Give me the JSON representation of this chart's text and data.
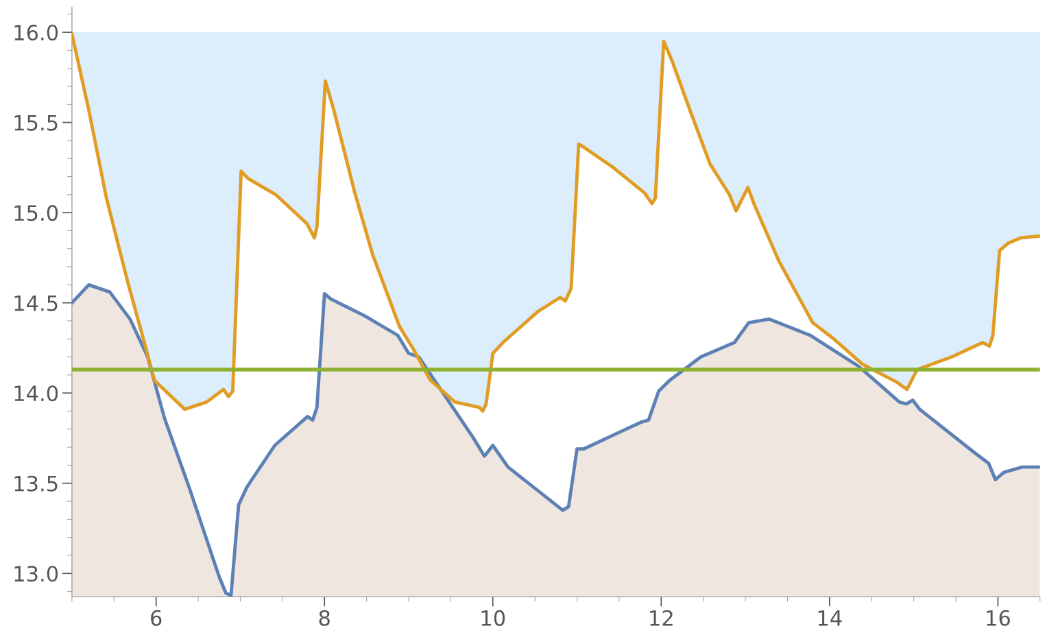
{
  "chart_data": {
    "type": "line",
    "xlim": [
      5,
      16.5
    ],
    "ylim": [
      12.87,
      16.14
    ],
    "xticks": [
      6,
      8,
      10,
      12,
      14,
      16
    ],
    "yticks": [
      {
        "value": 13,
        "label": "13.0"
      },
      13.5,
      {
        "value": 14,
        "label": "14.0"
      },
      14.5,
      {
        "value": 15,
        "label": "15.0"
      },
      15.5,
      {
        "value": 16,
        "label": "16.0"
      }
    ],
    "grid": false,
    "legend": false,
    "marker": "none",
    "line_style": "solid",
    "series": [
      {
        "type": "area",
        "color": "#5e81b5",
        "x": [
          5.0,
          5.2,
          5.45,
          5.69,
          5.9,
          6.1,
          6.39,
          6.75,
          6.83,
          6.89,
          6.98,
          7.08,
          7.41,
          7.8,
          7.86,
          7.91,
          8.0,
          8.08,
          8.47,
          8.87,
          9.0,
          9.12,
          9.77,
          9.9,
          10.0,
          10.18,
          10.75,
          10.83,
          10.9,
          11.0,
          11.08,
          11.49,
          11.77,
          11.85,
          11.97,
          12.1,
          12.47,
          12.87,
          13.04,
          13.28,
          13.77,
          14.34,
          14.83,
          14.91,
          14.99,
          15.07,
          15.72,
          15.89,
          15.97,
          16.07,
          16.29,
          16.5
        ],
        "values": [
          14.5,
          14.6,
          14.56,
          14.41,
          14.2,
          13.86,
          13.48,
          12.98,
          12.89,
          12.88,
          13.38,
          13.48,
          13.71,
          13.87,
          13.85,
          13.92,
          14.55,
          14.52,
          14.43,
          14.32,
          14.22,
          14.2,
          13.75,
          13.65,
          13.71,
          13.59,
          13.38,
          13.35,
          13.37,
          13.69,
          13.69,
          13.78,
          13.84,
          13.85,
          14.01,
          14.07,
          14.2,
          14.28,
          14.39,
          14.41,
          14.32,
          14.15,
          13.95,
          13.94,
          13.96,
          13.91,
          13.67,
          13.61,
          13.52,
          13.56,
          13.59,
          13.59
        ]
      },
      {
        "color": "#e19c24",
        "x": [
          5.0,
          5.2,
          5.41,
          5.66,
          5.86,
          5.98,
          6.34,
          6.6,
          6.8,
          6.86,
          6.91,
          7.01,
          7.09,
          7.42,
          7.79,
          7.88,
          7.91,
          8.01,
          8.11,
          8.36,
          8.57,
          8.89,
          9.06,
          9.26,
          9.55,
          9.84,
          9.88,
          9.92,
          10.0,
          10.12,
          10.53,
          10.8,
          10.86,
          10.93,
          11.02,
          11.09,
          11.43,
          11.8,
          11.89,
          11.93,
          12.03,
          12.13,
          12.34,
          12.58,
          12.81,
          12.89,
          13.03,
          13.11,
          13.4,
          13.8,
          14.05,
          14.39,
          14.8,
          14.92,
          15.04,
          15.45,
          15.82,
          15.9,
          15.94,
          16.02,
          16.12,
          16.27,
          16.5
        ],
        "values": [
          15.99,
          15.57,
          15.08,
          14.62,
          14.28,
          14.07,
          13.91,
          13.95,
          14.02,
          13.98,
          14.01,
          15.23,
          15.19,
          15.1,
          14.94,
          14.86,
          14.92,
          15.73,
          15.57,
          15.11,
          14.77,
          14.37,
          14.24,
          14.07,
          13.95,
          13.92,
          13.9,
          13.94,
          14.22,
          14.28,
          14.45,
          14.53,
          14.51,
          14.58,
          15.38,
          15.36,
          15.25,
          15.11,
          15.05,
          15.08,
          15.95,
          15.84,
          15.57,
          15.27,
          15.1,
          15.01,
          15.14,
          15.04,
          14.73,
          14.39,
          14.3,
          14.16,
          14.06,
          14.02,
          14.13,
          14.2,
          14.28,
          14.26,
          14.32,
          14.79,
          14.83,
          14.86,
          14.87
        ],
        "lower": [
          15.99,
          15.57,
          15.08,
          14.62,
          14.28,
          14.07,
          13.91,
          13.95,
          14.02,
          13.98,
          14.01,
          15.23,
          15.19,
          15.1,
          14.94,
          14.86,
          14.92,
          15.73,
          15.57,
          15.11,
          14.77,
          14.37,
          14.24,
          14.07,
          13.95,
          13.92,
          13.9,
          13.94,
          14.22,
          14.28,
          14.45,
          14.53,
          14.51,
          14.58,
          15.38,
          15.36,
          15.25,
          15.11,
          15.05,
          15.08,
          15.95,
          15.84,
          15.57,
          15.27,
          15.1,
          15.01,
          15.14,
          15.04,
          14.73,
          14.39,
          14.3,
          14.16,
          14.06,
          14.02,
          14.13,
          14.2,
          14.28,
          14.26,
          14.32,
          14.79,
          14.83,
          14.86,
          14.87
        ],
        "upper": [
          16,
          16,
          16,
          16,
          16,
          16,
          16,
          16,
          16,
          16,
          16,
          16,
          16,
          16,
          16,
          16,
          16,
          16,
          16,
          16,
          16,
          16,
          16,
          16,
          16,
          16,
          16,
          16,
          16,
          16,
          16,
          16,
          16,
          16,
          16,
          16,
          16,
          16,
          16,
          16,
          16,
          16,
          16,
          16,
          16,
          16,
          16,
          16,
          16,
          16,
          16,
          16,
          16,
          16,
          16,
          16,
          16,
          16,
          16,
          16,
          16,
          16,
          16
        ]
      }
    ],
    "ref_lines": [
      {
        "axis": "y",
        "value": 14.13,
        "color": "#8fb131",
        "line_style": "solid"
      }
    ]
  }
}
